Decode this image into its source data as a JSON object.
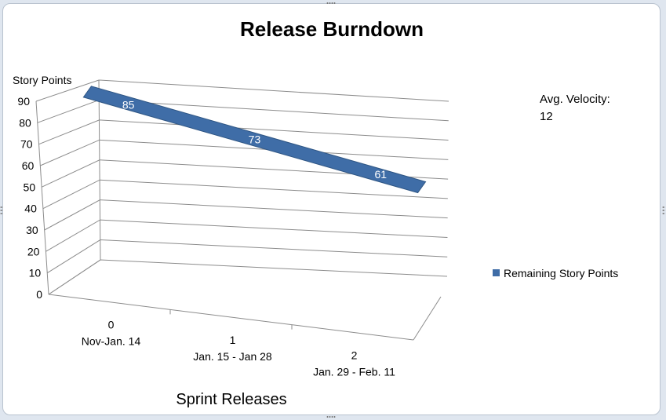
{
  "chart_data": {
    "type": "line",
    "title": "Release Burndown",
    "ylabel": "Story Points",
    "xlabel": "Sprint Releases",
    "ylim": [
      0,
      90
    ],
    "yticks": [
      0,
      10,
      20,
      30,
      40,
      50,
      60,
      70,
      80,
      90
    ],
    "categories": [
      {
        "index": "0",
        "label": "Nov-Jan. 14"
      },
      {
        "index": "1",
        "label": "Jan. 15 - Jan 28"
      },
      {
        "index": "2",
        "label": "Jan. 29 - Feb. 11"
      }
    ],
    "series": [
      {
        "name": "Remaining Story Points",
        "values": [
          85,
          73,
          61
        ],
        "color": "#3f6da7"
      }
    ],
    "legend_position": "right",
    "grid": true,
    "three_d": true
  },
  "annotation": {
    "label": "Avg. Velocity:",
    "value": "12"
  }
}
